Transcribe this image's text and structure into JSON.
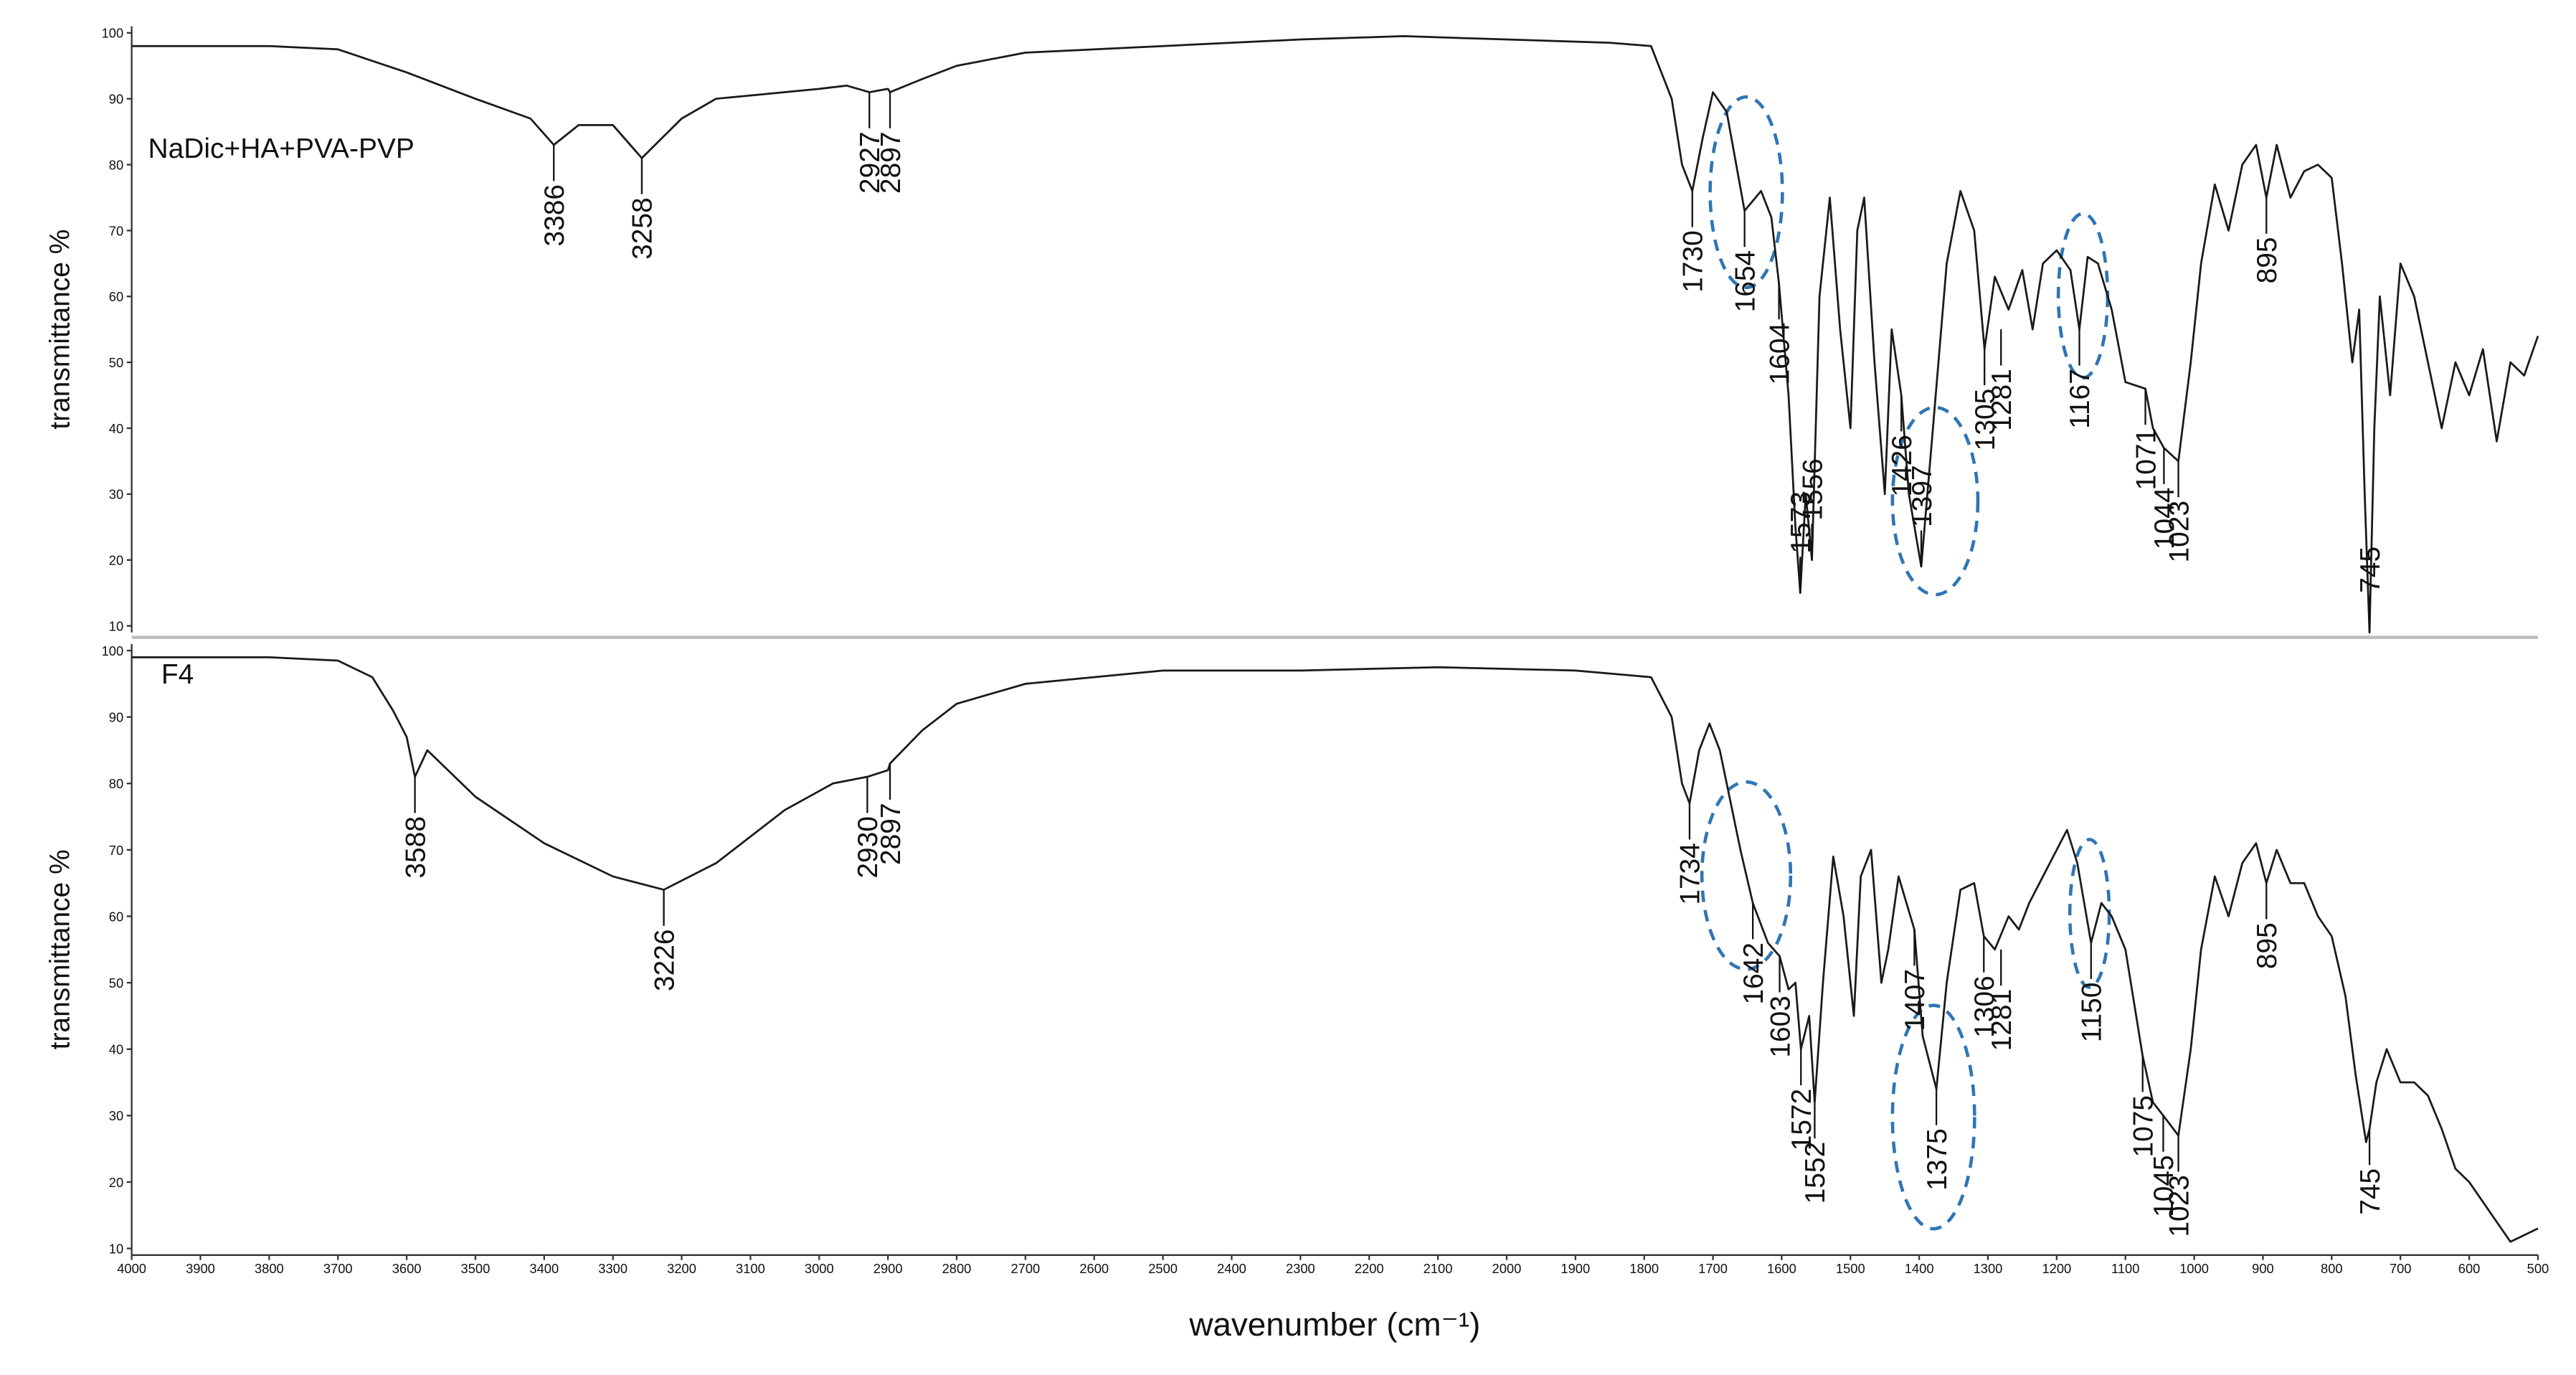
{
  "chart_data": [
    {
      "type": "line",
      "title": "NaDic+HA+PVA-PVP",
      "ylabel": "transmittance %",
      "xlim": [
        4000,
        500
      ],
      "ylim": [
        9,
        101
      ],
      "yticks": [
        10,
        20,
        30,
        40,
        50,
        60,
        70,
        80,
        90,
        100
      ],
      "x": [
        4000,
        3800,
        3700,
        3600,
        3500,
        3420,
        3386,
        3350,
        3300,
        3258,
        3200,
        3150,
        3100,
        3050,
        3000,
        2960,
        2927,
        2900,
        2897,
        2850,
        2800,
        2700,
        2500,
        2300,
        2150,
        2000,
        1850,
        1790,
        1760,
        1745,
        1730,
        1715,
        1700,
        1680,
        1654,
        1630,
        1615,
        1604,
        1590,
        1580,
        1573,
        1565,
        1556,
        1545,
        1530,
        1515,
        1500,
        1490,
        1480,
        1465,
        1450,
        1440,
        1426,
        1415,
        1397,
        1380,
        1360,
        1340,
        1320,
        1305,
        1290,
        1270,
        1250,
        1235,
        1220,
        1200,
        1180,
        1167,
        1155,
        1140,
        1120,
        1100,
        1071,
        1060,
        1044,
        1023,
        1005,
        990,
        970,
        950,
        930,
        910,
        895,
        880,
        860,
        840,
        820,
        800,
        785,
        770,
        760,
        752,
        745,
        738,
        730,
        715,
        700,
        680,
        660,
        640,
        620,
        600,
        580,
        560,
        540,
        520,
        500
      ],
      "series": [
        {
          "color": "#1a1a1a",
          "values": [
            98,
            98,
            97.5,
            94,
            90,
            87,
            83,
            86,
            86,
            81,
            87,
            90,
            90.5,
            91,
            91.5,
            92,
            91,
            91.5,
            91,
            93,
            95,
            97,
            98,
            99,
            99.5,
            99,
            98.5,
            98,
            90,
            80,
            76,
            84,
            91,
            88,
            73,
            76,
            72,
            62,
            45,
            25,
            15,
            30,
            20,
            60,
            75,
            55,
            40,
            70,
            75,
            50,
            30,
            55,
            45,
            30,
            19,
            40,
            65,
            76,
            70,
            52,
            63,
            58,
            64,
            55,
            65,
            67,
            64,
            55,
            66,
            65,
            58,
            47,
            46,
            40,
            37,
            35,
            50,
            65,
            77,
            70,
            80,
            83,
            75,
            83,
            75,
            79,
            80,
            78,
            65,
            50,
            58,
            30,
            9,
            40,
            60,
            45,
            65,
            60,
            50,
            40,
            50,
            45,
            52,
            38,
            50,
            48,
            54
          ]
        }
      ],
      "annotations": [
        {
          "x": 3386,
          "y": 83
        },
        {
          "x": 3258,
          "y": 81
        },
        {
          "x": 2927,
          "y": 91
        },
        {
          "x": 2897,
          "y": 91
        },
        {
          "x": 1730,
          "y": 76
        },
        {
          "x": 1654,
          "y": 73
        },
        {
          "x": 1604,
          "y": 62
        },
        {
          "x": 1573,
          "y": 15
        },
        {
          "x": 1556,
          "y": 20
        },
        {
          "x": 1426,
          "y": 45
        },
        {
          "x": 1397,
          "y": 19
        },
        {
          "x": 1305,
          "y": 52
        },
        {
          "x": 1281,
          "y": 55
        },
        {
          "x": 1167,
          "y": 55
        },
        {
          "x": 1071,
          "y": 46
        },
        {
          "x": 1044,
          "y": 37
        },
        {
          "x": 1023,
          "y": 35
        },
        {
          "x": 895,
          "y": 75
        },
        {
          "x": 745,
          "y": 9
        }
      ]
    },
    {
      "type": "line",
      "title": "F4",
      "ylabel": "transmittance %",
      "xlabel": "wavenumber (cm⁻¹)",
      "xlim": [
        4000,
        500
      ],
      "ylim": [
        9,
        101
      ],
      "yticks": [
        10,
        20,
        30,
        40,
        50,
        60,
        70,
        80,
        90,
        100
      ],
      "xticks": [
        4000,
        3900,
        3800,
        3700,
        3600,
        3500,
        3400,
        3300,
        3200,
        3100,
        3000,
        2900,
        2800,
        2700,
        2600,
        2500,
        2400,
        2300,
        2200,
        2100,
        2000,
        1900,
        1800,
        1700,
        1600,
        1500,
        1400,
        1300,
        1200,
        1100,
        1000,
        900,
        800,
        700,
        600,
        500
      ],
      "x": [
        4000,
        3800,
        3700,
        3650,
        3620,
        3600,
        3588,
        3570,
        3500,
        3400,
        3300,
        3226,
        3150,
        3050,
        2980,
        2930,
        2900,
        2897,
        2850,
        2800,
        2700,
        2500,
        2300,
        2100,
        1900,
        1790,
        1760,
        1745,
        1734,
        1720,
        1705,
        1690,
        1660,
        1642,
        1620,
        1603,
        1590,
        1580,
        1572,
        1560,
        1552,
        1540,
        1525,
        1510,
        1495,
        1485,
        1470,
        1455,
        1445,
        1430,
        1407,
        1395,
        1375,
        1360,
        1340,
        1320,
        1306,
        1290,
        1270,
        1255,
        1240,
        1220,
        1200,
        1185,
        1170,
        1150,
        1135,
        1120,
        1100,
        1075,
        1060,
        1045,
        1023,
        1005,
        990,
        970,
        950,
        930,
        910,
        895,
        880,
        860,
        840,
        820,
        800,
        780,
        765,
        750,
        745,
        735,
        720,
        700,
        680,
        660,
        640,
        620,
        600,
        580,
        560,
        540,
        520,
        500
      ],
      "series": [
        {
          "color": "#1a1a1a",
          "values": [
            99,
            99,
            98.5,
            96,
            91,
            87,
            81,
            85,
            78,
            71,
            66,
            64,
            68,
            76,
            80,
            81,
            82,
            83,
            88,
            92,
            95,
            97,
            97,
            97.5,
            97,
            96,
            90,
            80,
            77,
            85,
            89,
            85,
            70,
            62,
            56,
            54,
            49,
            50,
            40,
            45,
            32,
            50,
            69,
            60,
            45,
            66,
            70,
            50,
            55,
            66,
            58,
            42,
            34,
            50,
            64,
            65,
            57,
            55,
            60,
            58,
            62,
            66,
            70,
            73,
            68,
            56,
            62,
            60,
            55,
            39,
            32,
            30,
            27,
            40,
            55,
            66,
            60,
            68,
            71,
            65,
            70,
            65,
            65,
            60,
            57,
            48,
            36,
            26,
            28,
            35,
            40,
            35,
            35,
            33,
            28,
            22,
            20,
            17,
            14,
            11,
            12,
            13
          ]
        }
      ],
      "annotations": [
        {
          "x": 3588,
          "y": 81
        },
        {
          "x": 3226,
          "y": 64
        },
        {
          "x": 2930,
          "y": 81
        },
        {
          "x": 2897,
          "y": 83
        },
        {
          "x": 1734,
          "y": 77
        },
        {
          "x": 1642,
          "y": 62
        },
        {
          "x": 1603,
          "y": 54
        },
        {
          "x": 1572,
          "y": 40
        },
        {
          "x": 1552,
          "y": 32
        },
        {
          "x": 1407,
          "y": 58
        },
        {
          "x": 1375,
          "y": 34
        },
        {
          "x": 1306,
          "y": 57
        },
        {
          "x": 1281,
          "y": 55
        },
        {
          "x": 1150,
          "y": 56
        },
        {
          "x": 1075,
          "y": 39
        },
        {
          "x": 1045,
          "y": 30
        },
        {
          "x": 1023,
          "y": 27
        },
        {
          "x": 895,
          "y": 65
        },
        {
          "x": 745,
          "y": 28
        }
      ]
    }
  ]
}
